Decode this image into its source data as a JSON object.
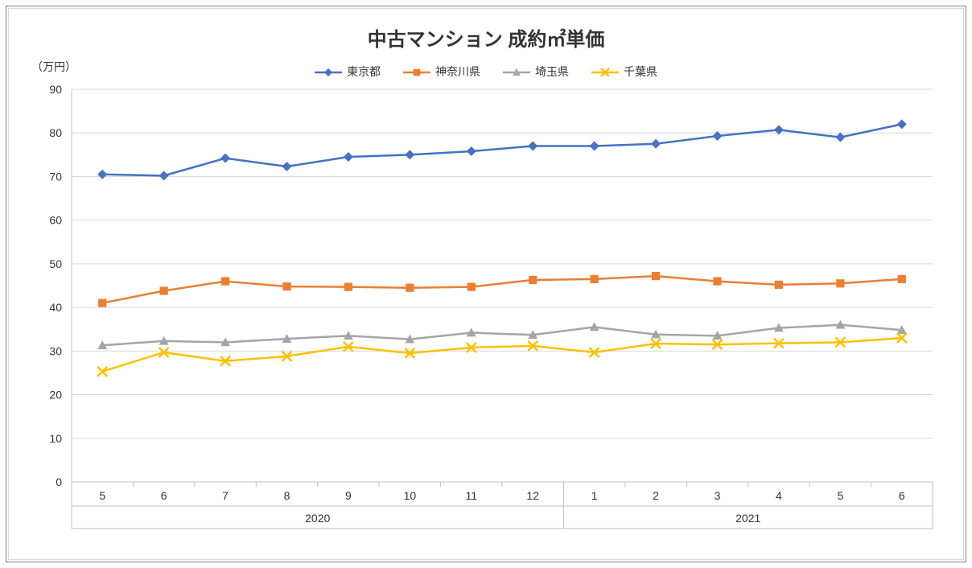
{
  "title": "中古マンション 成約㎡単価",
  "unit_label": "（万円）",
  "legend": [
    {
      "label": "東京都",
      "color": "#4472c4",
      "marker": "diamond"
    },
    {
      "label": "神奈川県",
      "color": "#ed7d31",
      "marker": "square"
    },
    {
      "label": "埼玉県",
      "color": "#a5a5a5",
      "marker": "triangle"
    },
    {
      "label": "千葉県",
      "color": "#ffc000",
      "marker": "x"
    }
  ],
  "chart": {
    "type": "line",
    "background_color": "#ffffff",
    "grid_color": "#d9d9d9",
    "axis_color": "#bfbfbf",
    "text_color": "#333333",
    "label_fontsize": 14,
    "title_fontsize": 24,
    "ylim": [
      0,
      90
    ],
    "ytick_step": 10,
    "x_categories": [
      "5",
      "6",
      "7",
      "8",
      "9",
      "10",
      "11",
      "12",
      "1",
      "2",
      "3",
      "4",
      "5",
      "6"
    ],
    "x_group_labels": [
      {
        "label": "2020",
        "span": [
          0,
          7
        ]
      },
      {
        "label": "2021",
        "span": [
          8,
          13
        ]
      }
    ],
    "series": [
      {
        "name": "東京都",
        "color": "#4472c4",
        "marker": "diamond",
        "values": [
          70.5,
          70.2,
          74.2,
          72.3,
          74.5,
          75.0,
          75.8,
          77.0,
          77.0,
          77.5,
          79.3,
          80.7,
          79.0,
          82.0
        ]
      },
      {
        "name": "神奈川県",
        "color": "#ed7d31",
        "marker": "square",
        "values": [
          41.0,
          43.8,
          46.0,
          44.8,
          44.7,
          44.5,
          44.7,
          46.3,
          46.5,
          47.2,
          46.0,
          45.2,
          45.5,
          46.5
        ]
      },
      {
        "name": "埼玉県",
        "color": "#a5a5a5",
        "marker": "triangle",
        "values": [
          31.3,
          32.3,
          32.0,
          32.8,
          33.5,
          32.7,
          34.2,
          33.7,
          35.5,
          33.8,
          33.5,
          35.3,
          36.0,
          34.8
        ]
      },
      {
        "name": "千葉県",
        "color": "#ffc000",
        "marker": "x",
        "values": [
          25.3,
          29.7,
          27.7,
          28.8,
          31.0,
          29.5,
          30.8,
          31.2,
          29.7,
          31.7,
          31.5,
          31.8,
          32.0,
          33.0
        ]
      }
    ],
    "line_width": 2.5,
    "marker_size": 6
  }
}
